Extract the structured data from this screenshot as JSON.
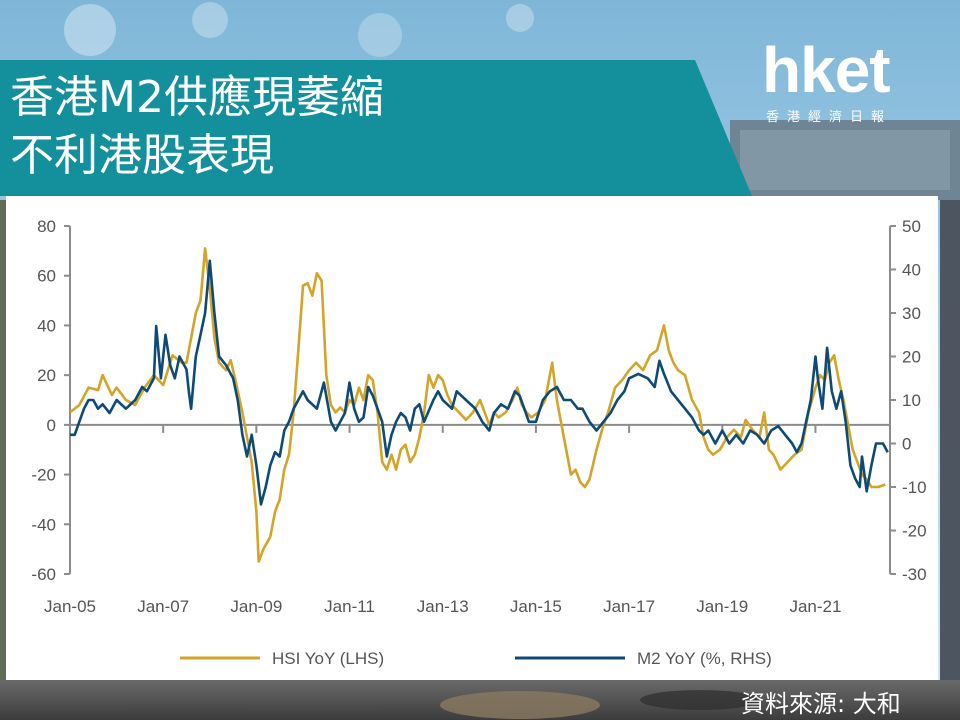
{
  "header": {
    "title_line1": "香港M2供應現萎縮",
    "title_line2": "不利港股表現",
    "banner_color": "#13909c"
  },
  "brand": {
    "logo": "hket",
    "tagline": "香港經濟日報"
  },
  "source": "資料來源: 大和",
  "chart_data": {
    "type": "line",
    "title": "",
    "x_labels": [
      "Jan-05",
      "Jan-07",
      "Jan-09",
      "Jan-11",
      "Jan-13",
      "Jan-15",
      "Jan-17",
      "Jan-19",
      "Jan-21"
    ],
    "x_range": [
      2005.0,
      2022.6
    ],
    "y_left": {
      "min": -60,
      "max": 80,
      "ticks": [
        80,
        60,
        40,
        20,
        0,
        -20,
        -40,
        -60
      ]
    },
    "y_right": {
      "min": -30,
      "max": 50,
      "ticks": [
        50,
        40,
        30,
        20,
        10,
        0,
        -10,
        -20,
        -30
      ]
    },
    "series": [
      {
        "name": "HSI YoY (LHS)",
        "axis": "left",
        "color": "#d4a429",
        "points": [
          [
            2005.0,
            5
          ],
          [
            2005.2,
            8
          ],
          [
            2005.4,
            15
          ],
          [
            2005.6,
            14
          ],
          [
            2005.7,
            20
          ],
          [
            2005.9,
            12
          ],
          [
            2006.0,
            15
          ],
          [
            2006.2,
            10
          ],
          [
            2006.4,
            8
          ],
          [
            2006.6,
            15
          ],
          [
            2006.8,
            20
          ],
          [
            2007.0,
            16
          ],
          [
            2007.2,
            28
          ],
          [
            2007.4,
            25
          ],
          [
            2007.5,
            25
          ],
          [
            2007.7,
            45
          ],
          [
            2007.8,
            50
          ],
          [
            2007.9,
            71
          ],
          [
            2008.0,
            55
          ],
          [
            2008.1,
            35
          ],
          [
            2008.2,
            25
          ],
          [
            2008.35,
            22
          ],
          [
            2008.45,
            26
          ],
          [
            2008.55,
            18
          ],
          [
            2008.7,
            5
          ],
          [
            2008.8,
            -5
          ],
          [
            2008.9,
            -15
          ],
          [
            2009.0,
            -35
          ],
          [
            2009.05,
            -55
          ],
          [
            2009.15,
            -50
          ],
          [
            2009.3,
            -45
          ],
          [
            2009.4,
            -35
          ],
          [
            2009.5,
            -30
          ],
          [
            2009.6,
            -18
          ],
          [
            2009.7,
            -12
          ],
          [
            2009.8,
            5
          ],
          [
            2009.9,
            30
          ],
          [
            2010.0,
            56
          ],
          [
            2010.1,
            57
          ],
          [
            2010.2,
            52
          ],
          [
            2010.3,
            61
          ],
          [
            2010.4,
            58
          ],
          [
            2010.5,
            20
          ],
          [
            2010.6,
            8
          ],
          [
            2010.7,
            5
          ],
          [
            2010.8,
            7
          ],
          [
            2010.9,
            5
          ],
          [
            2011.0,
            10
          ],
          [
            2011.1,
            8
          ],
          [
            2011.2,
            15
          ],
          [
            2011.3,
            10
          ],
          [
            2011.4,
            20
          ],
          [
            2011.5,
            18
          ],
          [
            2011.6,
            5
          ],
          [
            2011.7,
            -15
          ],
          [
            2011.8,
            -18
          ],
          [
            2011.9,
            -12
          ],
          [
            2012.0,
            -18
          ],
          [
            2012.1,
            -10
          ],
          [
            2012.2,
            -8
          ],
          [
            2012.3,
            -15
          ],
          [
            2012.4,
            -12
          ],
          [
            2012.5,
            -5
          ],
          [
            2012.6,
            5
          ],
          [
            2012.7,
            20
          ],
          [
            2012.8,
            15
          ],
          [
            2012.9,
            20
          ],
          [
            2013.0,
            18
          ],
          [
            2013.1,
            12
          ],
          [
            2013.2,
            8
          ],
          [
            2013.35,
            5
          ],
          [
            2013.5,
            2
          ],
          [
            2013.65,
            5
          ],
          [
            2013.8,
            10
          ],
          [
            2013.9,
            5
          ],
          [
            2014.0,
            0
          ],
          [
            2014.1,
            5
          ],
          [
            2014.2,
            3
          ],
          [
            2014.35,
            5
          ],
          [
            2014.5,
            10
          ],
          [
            2014.6,
            15
          ],
          [
            2014.7,
            8
          ],
          [
            2014.8,
            5
          ],
          [
            2014.9,
            3
          ],
          [
            2015.05,
            5
          ],
          [
            2015.2,
            10
          ],
          [
            2015.35,
            25
          ],
          [
            2015.45,
            10
          ],
          [
            2015.55,
            0
          ],
          [
            2015.65,
            -10
          ],
          [
            2015.75,
            -20
          ],
          [
            2015.85,
            -18
          ],
          [
            2015.95,
            -23
          ],
          [
            2016.05,
            -25
          ],
          [
            2016.15,
            -22
          ],
          [
            2016.3,
            -10
          ],
          [
            2016.45,
            0
          ],
          [
            2016.55,
            5
          ],
          [
            2016.7,
            15
          ],
          [
            2016.85,
            18
          ],
          [
            2017.0,
            22
          ],
          [
            2017.15,
            25
          ],
          [
            2017.3,
            22
          ],
          [
            2017.45,
            28
          ],
          [
            2017.6,
            30
          ],
          [
            2017.75,
            40
          ],
          [
            2017.85,
            30
          ],
          [
            2017.95,
            25
          ],
          [
            2018.05,
            22
          ],
          [
            2018.2,
            20
          ],
          [
            2018.35,
            10
          ],
          [
            2018.5,
            5
          ],
          [
            2018.6,
            -5
          ],
          [
            2018.7,
            -10
          ],
          [
            2018.8,
            -12
          ],
          [
            2018.95,
            -10
          ],
          [
            2019.1,
            -5
          ],
          [
            2019.25,
            -2
          ],
          [
            2019.4,
            -5
          ],
          [
            2019.5,
            2
          ],
          [
            2019.65,
            -2
          ],
          [
            2019.8,
            -5
          ],
          [
            2019.9,
            5
          ],
          [
            2020.0,
            -10
          ],
          [
            2020.1,
            -12
          ],
          [
            2020.25,
            -18
          ],
          [
            2020.4,
            -15
          ],
          [
            2020.55,
            -12
          ],
          [
            2020.7,
            -10
          ],
          [
            2020.85,
            5
          ],
          [
            2021.0,
            15
          ],
          [
            2021.1,
            20
          ],
          [
            2021.2,
            18
          ],
          [
            2021.3,
            25
          ],
          [
            2021.4,
            28
          ],
          [
            2021.5,
            18
          ],
          [
            2021.6,
            10
          ],
          [
            2021.7,
            0
          ],
          [
            2021.8,
            -10
          ],
          [
            2021.9,
            -15
          ],
          [
            2022.0,
            -20
          ],
          [
            2022.1,
            -22
          ],
          [
            2022.2,
            -25
          ],
          [
            2022.35,
            -25
          ],
          [
            2022.5,
            -24
          ]
        ]
      },
      {
        "name": "M2 YoY (%, RHS)",
        "axis": "right",
        "color": "#0e4a78",
        "points": [
          [
            2005.0,
            2
          ],
          [
            2005.1,
            2
          ],
          [
            2005.2,
            5
          ],
          [
            2005.3,
            8
          ],
          [
            2005.4,
            10
          ],
          [
            2005.5,
            10
          ],
          [
            2005.6,
            8
          ],
          [
            2005.7,
            9
          ],
          [
            2005.85,
            7
          ],
          [
            2006.0,
            10
          ],
          [
            2006.2,
            8
          ],
          [
            2006.4,
            10
          ],
          [
            2006.55,
            13
          ],
          [
            2006.65,
            12
          ],
          [
            2006.8,
            15
          ],
          [
            2006.85,
            27
          ],
          [
            2006.95,
            15
          ],
          [
            2007.05,
            25
          ],
          [
            2007.15,
            18
          ],
          [
            2007.25,
            15
          ],
          [
            2007.35,
            20
          ],
          [
            2007.5,
            17
          ],
          [
            2007.55,
            12
          ],
          [
            2007.6,
            8
          ],
          [
            2007.7,
            20
          ],
          [
            2007.8,
            25
          ],
          [
            2007.9,
            30
          ],
          [
            2008.0,
            42
          ],
          [
            2008.1,
            30
          ],
          [
            2008.2,
            20
          ],
          [
            2008.35,
            18
          ],
          [
            2008.5,
            15
          ],
          [
            2008.6,
            10
          ],
          [
            2008.7,
            2
          ],
          [
            2008.8,
            -3
          ],
          [
            2008.9,
            2
          ],
          [
            2009.0,
            -5
          ],
          [
            2009.1,
            -14
          ],
          [
            2009.2,
            -10
          ],
          [
            2009.3,
            -5
          ],
          [
            2009.4,
            -2
          ],
          [
            2009.5,
            -3
          ],
          [
            2009.6,
            3
          ],
          [
            2009.7,
            5
          ],
          [
            2009.8,
            8
          ],
          [
            2009.9,
            10
          ],
          [
            2010.0,
            12
          ],
          [
            2010.1,
            10
          ],
          [
            2010.3,
            8
          ],
          [
            2010.45,
            14
          ],
          [
            2010.6,
            5
          ],
          [
            2010.7,
            3
          ],
          [
            2010.8,
            5
          ],
          [
            2010.9,
            7
          ],
          [
            2011.0,
            14
          ],
          [
            2011.1,
            8
          ],
          [
            2011.2,
            5
          ],
          [
            2011.3,
            6
          ],
          [
            2011.4,
            13
          ],
          [
            2011.5,
            11
          ],
          [
            2011.6,
            8
          ],
          [
            2011.7,
            5
          ],
          [
            2011.8,
            -3
          ],
          [
            2011.9,
            2
          ],
          [
            2012.0,
            5
          ],
          [
            2012.1,
            7
          ],
          [
            2012.2,
            6
          ],
          [
            2012.3,
            3
          ],
          [
            2012.4,
            8
          ],
          [
            2012.5,
            9
          ],
          [
            2012.6,
            5
          ],
          [
            2012.8,
            10
          ],
          [
            2012.9,
            12
          ],
          [
            2013.0,
            10
          ],
          [
            2013.2,
            8
          ],
          [
            2013.3,
            12
          ],
          [
            2013.5,
            10
          ],
          [
            2013.7,
            8
          ],
          [
            2013.85,
            5
          ],
          [
            2014.0,
            3
          ],
          [
            2014.1,
            7
          ],
          [
            2014.25,
            9
          ],
          [
            2014.4,
            8
          ],
          [
            2014.55,
            12
          ],
          [
            2014.65,
            11
          ],
          [
            2014.75,
            8
          ],
          [
            2014.85,
            5
          ],
          [
            2015.0,
            5
          ],
          [
            2015.15,
            10
          ],
          [
            2015.3,
            12
          ],
          [
            2015.45,
            13
          ],
          [
            2015.6,
            10
          ],
          [
            2015.75,
            10
          ],
          [
            2015.9,
            8
          ],
          [
            2016.0,
            8
          ],
          [
            2016.15,
            5
          ],
          [
            2016.3,
            3
          ],
          [
            2016.45,
            5
          ],
          [
            2016.6,
            7
          ],
          [
            2016.75,
            10
          ],
          [
            2016.9,
            12
          ],
          [
            2017.0,
            15
          ],
          [
            2017.2,
            16
          ],
          [
            2017.4,
            15
          ],
          [
            2017.55,
            13
          ],
          [
            2017.65,
            19
          ],
          [
            2017.75,
            16
          ],
          [
            2017.9,
            12
          ],
          [
            2018.05,
            10
          ],
          [
            2018.2,
            8
          ],
          [
            2018.35,
            6
          ],
          [
            2018.5,
            3
          ],
          [
            2018.6,
            2
          ],
          [
            2018.7,
            3
          ],
          [
            2018.85,
            0
          ],
          [
            2019.0,
            3
          ],
          [
            2019.15,
            0
          ],
          [
            2019.3,
            2
          ],
          [
            2019.45,
            0
          ],
          [
            2019.6,
            3
          ],
          [
            2019.75,
            2
          ],
          [
            2019.9,
            0
          ],
          [
            2020.05,
            3
          ],
          [
            2020.2,
            4
          ],
          [
            2020.35,
            2
          ],
          [
            2020.5,
            0
          ],
          [
            2020.6,
            -2
          ],
          [
            2020.7,
            0
          ],
          [
            2020.8,
            5
          ],
          [
            2020.9,
            10
          ],
          [
            2021.0,
            20
          ],
          [
            2021.05,
            15
          ],
          [
            2021.15,
            8
          ],
          [
            2021.25,
            22
          ],
          [
            2021.35,
            12
          ],
          [
            2021.45,
            8
          ],
          [
            2021.55,
            12
          ],
          [
            2021.65,
            5
          ],
          [
            2021.75,
            -5
          ],
          [
            2021.85,
            -8
          ],
          [
            2021.95,
            -10
          ],
          [
            2022.0,
            -3
          ],
          [
            2022.1,
            -11
          ],
          [
            2022.2,
            -5
          ],
          [
            2022.3,
            0
          ],
          [
            2022.45,
            0
          ],
          [
            2022.55,
            -2
          ]
        ]
      }
    ],
    "legend_position": "bottom",
    "grid": false
  }
}
